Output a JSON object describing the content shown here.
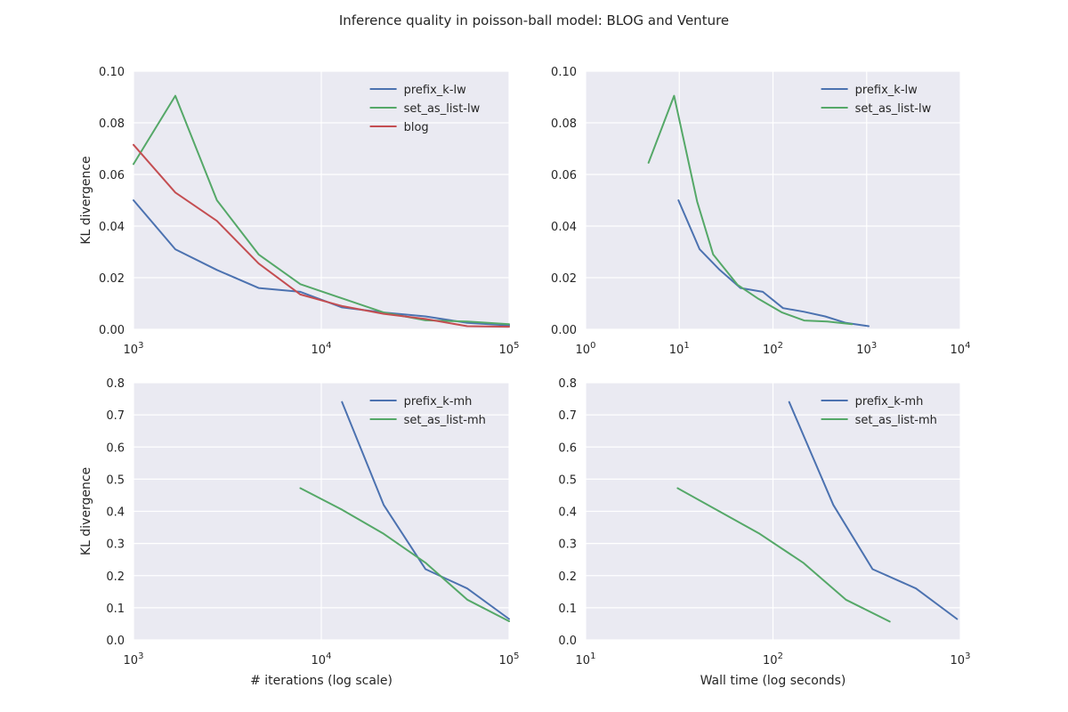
{
  "figure": {
    "title": "Inference quality in poisson-ball model: BLOG and Venture"
  },
  "colors": {
    "prefix_k": "#4C72B0",
    "set_as_list": "#55A868",
    "blog": "#C44E52",
    "panel_bg": "#EAEAF2"
  },
  "chart_data": [
    {
      "type": "line",
      "position": "top-left",
      "xscale": "log",
      "xlim": [
        1000,
        100000
      ],
      "ylim": [
        0,
        0.1
      ],
      "xticks": [
        {
          "value": 1000,
          "label": "10^3"
        },
        {
          "value": 10000,
          "label": "10^4"
        },
        {
          "value": 100000,
          "label": "10^5"
        }
      ],
      "yticks": [
        {
          "value": 0,
          "label": "0.00"
        },
        {
          "value": 0.02,
          "label": "0.02"
        },
        {
          "value": 0.04,
          "label": "0.04"
        },
        {
          "value": 0.06,
          "label": "0.06"
        },
        {
          "value": 0.08,
          "label": "0.08"
        },
        {
          "value": 0.1,
          "label": "0.10"
        }
      ],
      "xlabel": "",
      "ylabel": "KL divergence",
      "grid": true,
      "legend": "top-right",
      "series": [
        {
          "name": "prefix_k-lw",
          "color": "#4C72B0",
          "x": [
            1000,
            1670,
            2780,
            4640,
            7740,
            12900,
            21500,
            35900,
            59900,
            100000
          ],
          "y": [
            0.05,
            0.031,
            0.023,
            0.016,
            0.0145,
            0.0085,
            0.0065,
            0.005,
            0.0025,
            0.0015
          ]
        },
        {
          "name": "set_as_list-lw",
          "color": "#55A868",
          "x": [
            1000,
            1670,
            2780,
            4640,
            7740,
            12900,
            21500,
            35900,
            59900,
            100000
          ],
          "y": [
            0.064,
            0.0905,
            0.05,
            0.029,
            0.0175,
            0.012,
            0.0065,
            0.0035,
            0.003,
            0.002
          ]
        },
        {
          "name": "blog",
          "color": "#C44E52",
          "x": [
            1000,
            1670,
            2780,
            4640,
            7740,
            12900,
            21500,
            35900,
            59900,
            100000
          ],
          "y": [
            0.0715,
            0.053,
            0.042,
            0.0255,
            0.0135,
            0.009,
            0.006,
            0.004,
            0.0012,
            0.001
          ]
        }
      ]
    },
    {
      "type": "line",
      "position": "top-right",
      "xscale": "log",
      "xlim": [
        1,
        10000
      ],
      "ylim": [
        0,
        0.1
      ],
      "xticks": [
        {
          "value": 1,
          "label": "10^0"
        },
        {
          "value": 10,
          "label": "10^1"
        },
        {
          "value": 100,
          "label": "10^2"
        },
        {
          "value": 1000,
          "label": "10^3"
        },
        {
          "value": 10000,
          "label": "10^4"
        }
      ],
      "yticks": [
        {
          "value": 0,
          "label": "0.00"
        },
        {
          "value": 0.02,
          "label": "0.02"
        },
        {
          "value": 0.04,
          "label": "0.04"
        },
        {
          "value": 0.06,
          "label": "0.06"
        },
        {
          "value": 0.08,
          "label": "0.08"
        },
        {
          "value": 0.1,
          "label": "0.10"
        }
      ],
      "xlabel": "",
      "ylabel": "",
      "grid": true,
      "legend": "top-right",
      "series": [
        {
          "name": "prefix_k-lw",
          "color": "#4C72B0",
          "x": [
            9.8,
            16.5,
            27,
            45,
            78,
            128,
            215,
            360,
            600,
            1050
          ],
          "y": [
            0.05,
            0.031,
            0.023,
            0.016,
            0.0145,
            0.0082,
            0.0068,
            0.005,
            0.0025,
            0.0012
          ]
        },
        {
          "name": "set_as_list-lw",
          "color": "#55A868",
          "x": [
            4.7,
            8.8,
            15.5,
            23,
            42,
            70,
            125,
            215,
            380,
            700
          ],
          "y": [
            0.0645,
            0.0905,
            0.0495,
            0.029,
            0.0172,
            0.0118,
            0.0065,
            0.0034,
            0.003,
            0.002
          ]
        }
      ]
    },
    {
      "type": "line",
      "position": "bottom-left",
      "xscale": "log",
      "xlim": [
        1000,
        100000
      ],
      "ylim": [
        0,
        0.8
      ],
      "xticks": [
        {
          "value": 1000,
          "label": "10^3"
        },
        {
          "value": 10000,
          "label": "10^4"
        },
        {
          "value": 100000,
          "label": "10^5"
        }
      ],
      "yticks": [
        {
          "value": 0,
          "label": "0.0"
        },
        {
          "value": 0.1,
          "label": "0.1"
        },
        {
          "value": 0.2,
          "label": "0.2"
        },
        {
          "value": 0.3,
          "label": "0.3"
        },
        {
          "value": 0.4,
          "label": "0.4"
        },
        {
          "value": 0.5,
          "label": "0.5"
        },
        {
          "value": 0.6,
          "label": "0.6"
        },
        {
          "value": 0.7,
          "label": "0.7"
        },
        {
          "value": 0.8,
          "label": "0.8"
        }
      ],
      "xlabel": "# iterations (log scale)",
      "ylabel": "KL divergence",
      "grid": true,
      "legend": "top-right",
      "series": [
        {
          "name": "prefix_k-mh",
          "color": "#4C72B0",
          "x": [
            12900,
            21500,
            35900,
            59900,
            100000
          ],
          "y": [
            0.74,
            0.42,
            0.22,
            0.16,
            0.065
          ]
        },
        {
          "name": "set_as_list-mh",
          "color": "#55A868",
          "x": [
            7740,
            12900,
            21500,
            35900,
            59900,
            100000
          ],
          "y": [
            0.472,
            0.405,
            0.33,
            0.24,
            0.125,
            0.058
          ]
        }
      ]
    },
    {
      "type": "line",
      "position": "bottom-right",
      "xscale": "log",
      "xlim": [
        10,
        1000
      ],
      "ylim": [
        0,
        0.8
      ],
      "xticks": [
        {
          "value": 10,
          "label": "10^1"
        },
        {
          "value": 100,
          "label": "10^2"
        },
        {
          "value": 1000,
          "label": "10^3"
        }
      ],
      "yticks": [
        {
          "value": 0,
          "label": "0.0"
        },
        {
          "value": 0.1,
          "label": "0.1"
        },
        {
          "value": 0.2,
          "label": "0.2"
        },
        {
          "value": 0.3,
          "label": "0.3"
        },
        {
          "value": 0.4,
          "label": "0.4"
        },
        {
          "value": 0.5,
          "label": "0.5"
        },
        {
          "value": 0.6,
          "label": "0.6"
        },
        {
          "value": 0.7,
          "label": "0.7"
        },
        {
          "value": 0.8,
          "label": "0.8"
        }
      ],
      "xlabel": "Wall time (log seconds)",
      "ylabel": "",
      "grid": true,
      "legend": "top-right",
      "series": [
        {
          "name": "prefix_k-mh",
          "color": "#4C72B0",
          "x": [
            122,
            210,
            340,
            580,
            960
          ],
          "y": [
            0.74,
            0.42,
            0.22,
            0.16,
            0.065
          ]
        },
        {
          "name": "set_as_list-mh",
          "color": "#55A868",
          "x": [
            31,
            85,
            145,
            245,
            420
          ],
          "y": [
            0.472,
            0.33,
            0.24,
            0.125,
            0.057
          ]
        }
      ]
    }
  ]
}
